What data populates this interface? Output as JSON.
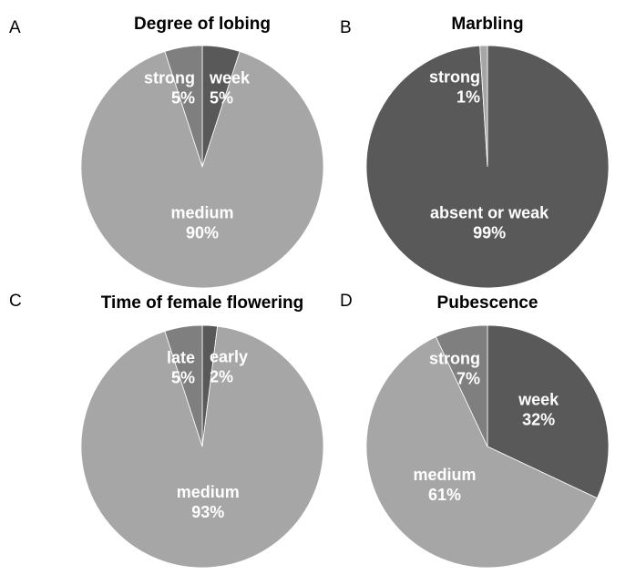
{
  "chart_data": [
    {
      "type": "pie",
      "label": "A",
      "title": "Degree of lobing",
      "categories": [
        "week",
        "medium",
        "strong"
      ],
      "values": [
        5,
        90,
        5
      ],
      "value_labels": [
        "5%",
        "90%",
        "5%"
      ],
      "colors": [
        "#595959",
        "#a6a6a6",
        "#7f7f7f"
      ]
    },
    {
      "type": "pie",
      "label": "B",
      "title": "Marbling",
      "categories": [
        "absent or weak",
        "strong"
      ],
      "values": [
        99,
        1
      ],
      "value_labels": [
        "99%",
        "1%"
      ],
      "colors": [
        "#595959",
        "#a6a6a6"
      ]
    },
    {
      "type": "pie",
      "label": "C",
      "title": "Time of female flowering",
      "categories": [
        "early",
        "medium",
        "late"
      ],
      "values": [
        2,
        93,
        5
      ],
      "value_labels": [
        "2%",
        "93%",
        "5%"
      ],
      "colors": [
        "#595959",
        "#a6a6a6",
        "#7f7f7f"
      ]
    },
    {
      "type": "pie",
      "label": "D",
      "title": "Pubescence",
      "categories": [
        "week",
        "medium",
        "strong"
      ],
      "values": [
        32,
        61,
        7
      ],
      "value_labels": [
        "32%",
        "61%",
        "7%"
      ],
      "colors": [
        "#595959",
        "#a6a6a6",
        "#7f7f7f"
      ]
    }
  ]
}
